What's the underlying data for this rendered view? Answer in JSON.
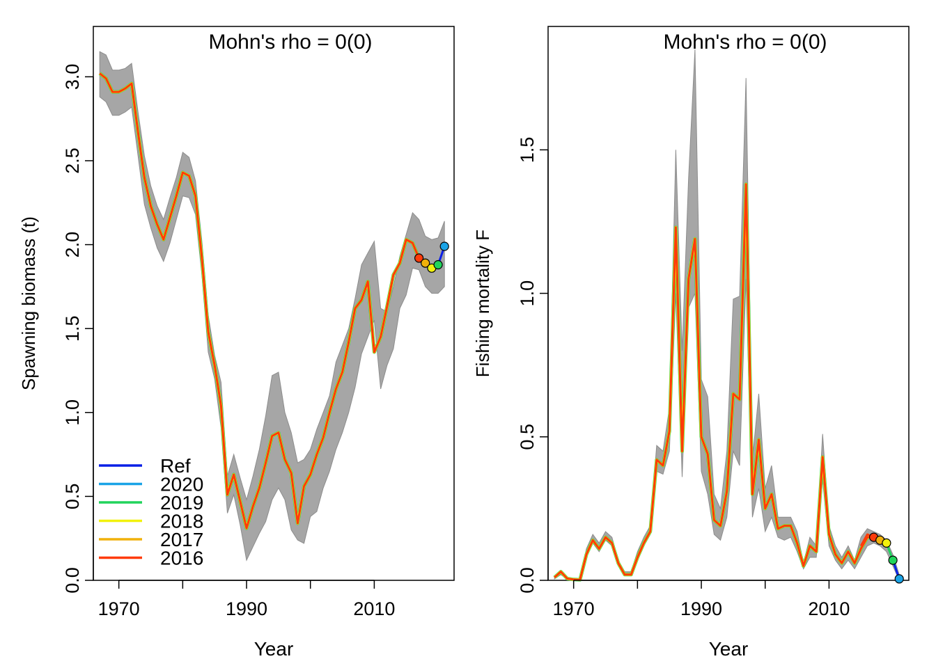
{
  "colors": {
    "band": "#a6a6a6",
    "band_edge": "#8c8c8c",
    "ref": "#0a1fe6",
    "p2020": "#1aa3e6",
    "p2019": "#21d45b",
    "p2018": "#f2f20d",
    "p2017": "#f0b10b",
    "p2016": "#ff3b0a"
  },
  "chart_data": [
    {
      "type": "line",
      "title": "Mohn's rho = 0(0)",
      "xlabel": "Year",
      "ylabel": "Spawning biomass (t)",
      "xlim": [
        1966,
        2022.5
      ],
      "ylim": [
        0,
        3.3
      ],
      "xticks": [
        1970,
        1990,
        2010
      ],
      "yticks": [
        0.0,
        0.5,
        1.0,
        1.5,
        2.0,
        2.5,
        3.0
      ],
      "ytick_labels": [
        "0.0",
        "0.5",
        "1.0",
        "1.5",
        "2.0",
        "2.5",
        "3.0"
      ],
      "grid": false,
      "legend": {
        "position": "bottom-left",
        "entries": [
          {
            "label": "Ref",
            "color_key": "ref"
          },
          {
            "label": "2020",
            "color_key": "p2020"
          },
          {
            "label": "2019",
            "color_key": "p2019"
          },
          {
            "label": "2018",
            "color_key": "p2018"
          },
          {
            "label": "2017",
            "color_key": "p2017"
          },
          {
            "label": "2016",
            "color_key": "p2016"
          }
        ]
      },
      "x": [
        1967,
        1968,
        1969,
        1970,
        1971,
        1972,
        1973,
        1974,
        1975,
        1976,
        1977,
        1978,
        1979,
        1980,
        1981,
        1982,
        1983,
        1984,
        1985,
        1986,
        1987,
        1988,
        1989,
        1990,
        1991,
        1992,
        1993,
        1994,
        1995,
        1996,
        1997,
        1998,
        1999,
        2000,
        2001,
        2002,
        2003,
        2004,
        2005,
        2006,
        2007,
        2008,
        2009,
        2010,
        2011,
        2012,
        2013,
        2014,
        2015,
        2016,
        2017,
        2018,
        2019,
        2020,
        2021
      ],
      "ci_lower": [
        2.88,
        2.85,
        2.77,
        2.77,
        2.79,
        2.82,
        2.53,
        2.24,
        2.1,
        1.98,
        1.9,
        2.01,
        2.15,
        2.29,
        2.28,
        2.18,
        1.82,
        1.36,
        1.2,
        0.91,
        0.4,
        0.51,
        0.33,
        0.12,
        0.2,
        0.28,
        0.35,
        0.48,
        0.55,
        0.48,
        0.3,
        0.24,
        0.22,
        0.38,
        0.41,
        0.55,
        0.65,
        0.78,
        0.88,
        1.0,
        1.15,
        1.35,
        1.45,
        1.55,
        1.14,
        1.28,
        1.38,
        1.62,
        1.7,
        1.86,
        1.85,
        1.75,
        1.71,
        1.71,
        1.75
      ],
      "ci_upper": [
        3.15,
        3.13,
        3.04,
        3.04,
        3.05,
        3.08,
        2.79,
        2.53,
        2.35,
        2.23,
        2.15,
        2.28,
        2.4,
        2.55,
        2.52,
        2.38,
        2.02,
        1.58,
        1.34,
        1.18,
        0.62,
        0.75,
        0.61,
        0.48,
        0.62,
        0.78,
        0.98,
        1.22,
        1.24,
        1.0,
        0.88,
        0.7,
        0.72,
        0.78,
        0.9,
        1.0,
        1.1,
        1.3,
        1.4,
        1.5,
        1.68,
        1.88,
        1.95,
        2.02,
        1.62,
        1.6,
        1.75,
        1.93,
        2.06,
        2.19,
        2.15,
        2.05,
        2.03,
        2.04,
        2.14
      ],
      "est_x": [
        1967,
        1968,
        1969,
        1970,
        1971,
        1972,
        1973,
        1974,
        1975,
        1976,
        1977,
        1978,
        1979,
        1980,
        1981,
        1982,
        1983,
        1984,
        1985,
        1986,
        1987,
        1988,
        1989,
        1990,
        1991,
        1992,
        1993,
        1994,
        1995,
        1996,
        1997,
        1998,
        1999,
        2000,
        2001,
        2002,
        2003,
        2004,
        2005,
        2006,
        2007,
        2008,
        2009,
        2010,
        2011,
        2012,
        2013,
        2014,
        2015,
        2016,
        2017
      ],
      "estimate": [
        3.02,
        2.99,
        2.91,
        2.91,
        2.93,
        2.96,
        2.67,
        2.4,
        2.23,
        2.12,
        2.03,
        2.16,
        2.29,
        2.43,
        2.41,
        2.29,
        1.92,
        1.48,
        1.28,
        1.04,
        0.51,
        0.63,
        0.47,
        0.31,
        0.44,
        0.55,
        0.7,
        0.86,
        0.88,
        0.72,
        0.64,
        0.34,
        0.56,
        0.63,
        0.75,
        0.85,
        1.0,
        1.14,
        1.24,
        1.42,
        1.62,
        1.67,
        1.78,
        1.36,
        1.45,
        1.63,
        1.82,
        1.89,
        2.03,
        2.01,
        1.92
      ],
      "peels": [
        {
          "name": "2020",
          "color_key": "p2020",
          "x": [
            2017,
            2018,
            2019,
            2020
          ],
          "y": [
            1.92,
            1.89,
            1.86,
            1.88
          ]
        },
        {
          "name": "2019",
          "color_key": "p2019",
          "x": [
            2017,
            2018,
            2019,
            2020
          ],
          "y": [
            1.92,
            1.89,
            1.86,
            1.88
          ]
        },
        {
          "name": "2018",
          "color_key": "p2018",
          "x": [
            2017,
            2018,
            2019
          ],
          "y": [
            1.92,
            1.89,
            1.86
          ]
        },
        {
          "name": "2017",
          "color_key": "p2017",
          "x": [
            2016,
            2017,
            2018
          ],
          "y": [
            2.01,
            1.92,
            1.89
          ]
        },
        {
          "name": "2016",
          "color_key": "p2016",
          "x": [
            2015,
            2016,
            2017
          ],
          "y": [
            2.03,
            2.01,
            1.92
          ]
        }
      ],
      "ref_tail": {
        "x": [
          2020,
          2021
        ],
        "y": [
          1.88,
          1.99
        ]
      },
      "terminal_points": [
        {
          "x": 2017,
          "y": 1.92,
          "color_key": "p2016"
        },
        {
          "x": 2018,
          "y": 1.89,
          "color_key": "p2017"
        },
        {
          "x": 2019,
          "y": 1.86,
          "color_key": "p2018"
        },
        {
          "x": 2020,
          "y": 1.88,
          "color_key": "p2019"
        },
        {
          "x": 2021,
          "y": 1.99,
          "color_key": "p2020"
        }
      ]
    },
    {
      "type": "line",
      "title": "Mohn's rho = 0(0)",
      "xlabel": "Year",
      "ylabel": "Fishing mortality F",
      "xlim": [
        1966,
        2022.5
      ],
      "ylim": [
        0,
        1.93
      ],
      "xticks": [
        1970,
        1990,
        2010
      ],
      "yticks": [
        0.0,
        0.5,
        1.0,
        1.5
      ],
      "ytick_labels": [
        "0.0",
        "0.5",
        "1.0",
        "1.5"
      ],
      "grid": false,
      "x": [
        1967,
        1968,
        1969,
        1970,
        1971,
        1972,
        1973,
        1974,
        1975,
        1976,
        1977,
        1978,
        1979,
        1980,
        1981,
        1982,
        1983,
        1984,
        1985,
        1986,
        1987,
        1988,
        1989,
        1990,
        1991,
        1992,
        1993,
        1994,
        1995,
        1996,
        1997,
        1998,
        1999,
        2000,
        2001,
        2002,
        2003,
        2004,
        2005,
        2006,
        2007,
        2008,
        2009,
        2010,
        2011,
        2012,
        2013,
        2014,
        2015,
        2016,
        2017,
        2018,
        2019,
        2020,
        2021
      ],
      "ci_lower": [
        0.005,
        0.02,
        0.004,
        0.002,
        0.001,
        0.08,
        0.13,
        0.1,
        0.14,
        0.12,
        0.05,
        0.02,
        0.02,
        0.07,
        0.12,
        0.16,
        0.38,
        0.37,
        0.45,
        1.0,
        0.36,
        0.95,
        1.0,
        0.38,
        0.3,
        0.16,
        0.14,
        0.22,
        0.45,
        0.4,
        1.05,
        0.22,
        0.32,
        0.17,
        0.22,
        0.15,
        0.14,
        0.15,
        0.1,
        0.04,
        0.08,
        0.08,
        0.35,
        0.12,
        0.07,
        0.04,
        0.07,
        0.04,
        0.08,
        0.12,
        0.13,
        0.12,
        0.1,
        0.05,
        0.0
      ],
      "ci_upper": [
        0.015,
        0.035,
        0.01,
        0.005,
        0.003,
        0.11,
        0.16,
        0.13,
        0.17,
        0.15,
        0.07,
        0.03,
        0.03,
        0.1,
        0.15,
        0.19,
        0.47,
        0.45,
        0.6,
        1.5,
        0.8,
        1.4,
        1.85,
        0.7,
        0.64,
        0.3,
        0.25,
        0.45,
        0.98,
        0.99,
        1.75,
        0.42,
        0.65,
        0.32,
        0.4,
        0.22,
        0.22,
        0.22,
        0.17,
        0.06,
        0.15,
        0.12,
        0.51,
        0.19,
        0.12,
        0.08,
        0.12,
        0.07,
        0.15,
        0.18,
        0.17,
        0.16,
        0.14,
        0.09,
        0.02
      ],
      "est_x": [
        1967,
        1968,
        1969,
        1970,
        1971,
        1972,
        1973,
        1974,
        1975,
        1976,
        1977,
        1978,
        1979,
        1980,
        1981,
        1982,
        1983,
        1984,
        1985,
        1986,
        1987,
        1988,
        1989,
        1990,
        1991,
        1992,
        1993,
        1994,
        1995,
        1996,
        1997,
        1998,
        1999,
        2000,
        2001,
        2002,
        2003,
        2004,
        2005,
        2006,
        2007,
        2008,
        2009,
        2010,
        2011,
        2012,
        2013,
        2014,
        2015,
        2016,
        2017
      ],
      "estimate": [
        0.01,
        0.03,
        0.006,
        0.003,
        0.002,
        0.09,
        0.14,
        0.11,
        0.15,
        0.13,
        0.06,
        0.02,
        0.02,
        0.08,
        0.13,
        0.17,
        0.42,
        0.4,
        0.52,
        1.23,
        0.45,
        1.05,
        1.19,
        0.5,
        0.44,
        0.21,
        0.19,
        0.31,
        0.65,
        0.63,
        1.38,
        0.3,
        0.49,
        0.25,
        0.3,
        0.18,
        0.19,
        0.19,
        0.13,
        0.05,
        0.12,
        0.1,
        0.43,
        0.16,
        0.09,
        0.06,
        0.1,
        0.06,
        0.11,
        0.15,
        0.15
      ],
      "peels": [
        {
          "name": "2020",
          "color_key": "p2020",
          "x": [
            2017,
            2018,
            2019,
            2020,
            2021
          ],
          "y": [
            0.15,
            0.14,
            0.13,
            0.07,
            0.005
          ]
        },
        {
          "name": "2019",
          "color_key": "p2019",
          "x": [
            2017,
            2018,
            2019,
            2020
          ],
          "y": [
            0.15,
            0.14,
            0.13,
            0.07
          ]
        },
        {
          "name": "2018",
          "color_key": "p2018",
          "x": [
            2017,
            2018,
            2019
          ],
          "y": [
            0.15,
            0.14,
            0.13
          ]
        },
        {
          "name": "2017",
          "color_key": "p2017",
          "x": [
            2016,
            2017,
            2018
          ],
          "y": [
            0.16,
            0.15,
            0.14
          ]
        },
        {
          "name": "2016",
          "color_key": "p2016",
          "x": [
            2015,
            2016,
            2017
          ],
          "y": [
            0.12,
            0.16,
            0.15
          ]
        }
      ],
      "ref_tail": {
        "x": [
          2020,
          2021
        ],
        "y": [
          0.07,
          0.005
        ]
      },
      "terminal_points": [
        {
          "x": 2017,
          "y": 0.15,
          "color_key": "p2016"
        },
        {
          "x": 2018,
          "y": 0.14,
          "color_key": "p2017"
        },
        {
          "x": 2019,
          "y": 0.13,
          "color_key": "p2018"
        },
        {
          "x": 2020,
          "y": 0.07,
          "color_key": "p2019"
        },
        {
          "x": 2021,
          "y": 0.005,
          "color_key": "p2020"
        }
      ]
    }
  ]
}
